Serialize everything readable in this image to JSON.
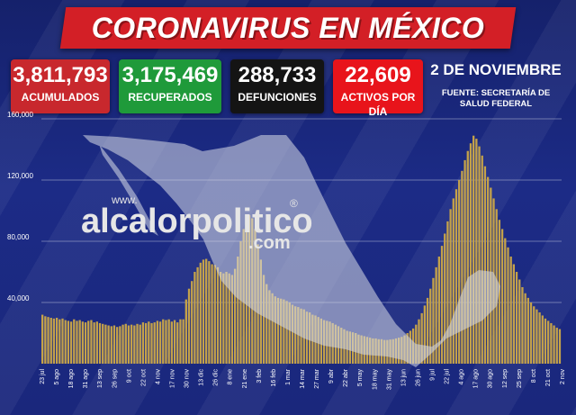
{
  "header": {
    "title": "CORONAVIRUS EN MÉXICO",
    "title_color": "#d31f26"
  },
  "stats": [
    {
      "value": "3,811,793",
      "label": "ACUMULADOS",
      "color": "#c8282d"
    },
    {
      "value": "3,175,469",
      "label": "RECUPERADOS",
      "color": "#1f9a3a"
    },
    {
      "value": "288,733",
      "label": "DEFUNCIONES",
      "color": "#141414"
    },
    {
      "value": "22,609",
      "label": "ACTIVOS POR DÍA",
      "color": "#e8141b"
    }
  ],
  "date": "2 DE NOVIEMBRE",
  "source": "FUENTE: SECRETARÍA DE SALUD FEDERAL",
  "watermark": {
    "prefix": "www.",
    "name": "alcalorpolitico",
    "mark": "®",
    "suffix": ".com"
  },
  "colors": {
    "bar": "#c4a24a",
    "map": "#d9dce8",
    "background": "#1c2b86"
  },
  "chart_data": {
    "type": "bar",
    "title": "",
    "xlabel": "",
    "ylabel": "",
    "ylim": [
      0,
      160000
    ],
    "yticks": [
      "40,000",
      "80,000",
      "120,000",
      "160,000"
    ],
    "ytick_values": [
      40000,
      80000,
      120000,
      160000
    ],
    "grid": true,
    "xtick_labels": [
      "23 jul",
      "5 ago",
      "18 ago",
      "31 ago",
      "13 sep",
      "26 sep",
      "9 oct",
      "22 oct",
      "4 nov",
      "17 nov",
      "30 nov",
      "13 dic",
      "26 dic",
      "8 ene",
      "21 ene",
      "3 feb",
      "16 feb",
      "1 mar",
      "14 mar",
      "27 mar",
      "9 abr",
      "22 abr",
      "5 may",
      "18 may",
      "31 may",
      "13 jun",
      "26 jun",
      "9 jul",
      "22 jul",
      "4 ago",
      "17 ago",
      "30 ago",
      "12 sep",
      "25 sep",
      "8 oct",
      "21 oct",
      "2 nov"
    ],
    "series": [
      {
        "values": [
          32000,
          31000,
          30500,
          30000,
          29500,
          30000,
          29000,
          29500,
          28500,
          28000,
          27500,
          29000,
          28000,
          28500,
          27500,
          27000,
          28000,
          28500,
          27000,
          27500,
          26500,
          26000,
          25500,
          25000,
          24500,
          25000,
          24000,
          24500,
          25500,
          26000,
          25000,
          25500,
          25000,
          26000,
          25500,
          27000,
          26500,
          27500,
          26500,
          27000,
          28000,
          27500,
          29000,
          28500,
          29000,
          27500,
          28500,
          27000,
          29000,
          29000,
          42000,
          49000,
          54000,
          60000,
          63000,
          66000,
          68000,
          68500,
          67000,
          65000,
          64500,
          63000,
          60000,
          59000,
          60000,
          59000,
          58000,
          62000,
          70000,
          80000,
          88000,
          95000,
          97000,
          95000,
          88000,
          78000,
          68000,
          58000,
          52000,
          48000,
          46000,
          44000,
          43000,
          42500,
          42000,
          41000,
          40000,
          38500,
          37500,
          37000,
          36000,
          35500,
          34000,
          33500,
          32000,
          31500,
          30500,
          29500,
          28500,
          28000,
          27500,
          26500,
          25500,
          24500,
          23500,
          22500,
          21500,
          21000,
          20500,
          20000,
          19000,
          18500,
          18000,
          17500,
          17000,
          16500,
          16500,
          16000,
          16000,
          15500,
          15500,
          15800,
          16000,
          16500,
          17000,
          17500,
          18500,
          20000,
          21500,
          23000,
          25500,
          29000,
          33000,
          38000,
          43000,
          49000,
          56000,
          63000,
          70000,
          77000,
          85000,
          93000,
          101000,
          108000,
          114000,
          120000,
          126000,
          133000,
          139000,
          144000,
          149000,
          147000,
          142000,
          136000,
          129000,
          122000,
          115000,
          108000,
          101000,
          94000,
          88000,
          82000,
          76000,
          70000,
          65000,
          60000,
          55000,
          50000,
          46000,
          43000,
          40000,
          37500,
          35500,
          33500,
          31500,
          29500,
          28000,
          26500,
          25000,
          23500,
          22609
        ]
      }
    ]
  }
}
